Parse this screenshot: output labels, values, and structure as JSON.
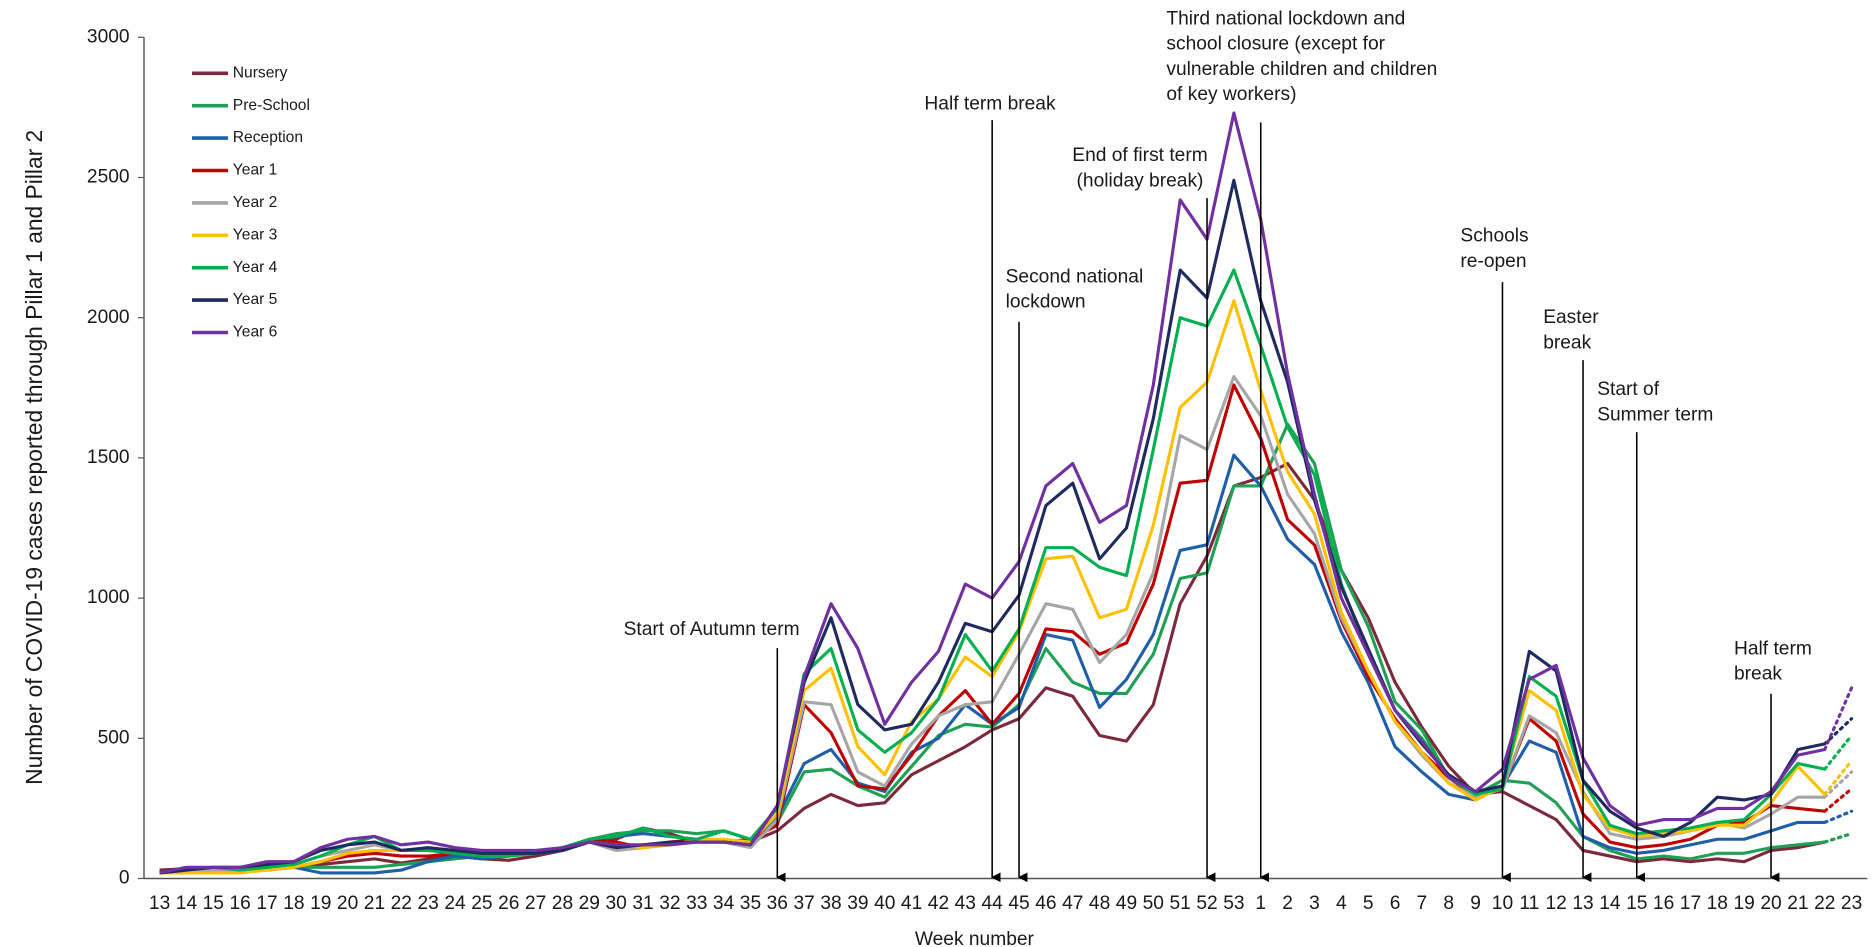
{
  "chart_data": {
    "type": "line",
    "xlabel": "Week number",
    "ylabel": "Number of COVID-19 cases reported through Pillar 1 and Pillar 2",
    "categories": [
      "13",
      "14",
      "15",
      "16",
      "17",
      "18",
      "19",
      "20",
      "21",
      "22",
      "23",
      "24",
      "25",
      "26",
      "27",
      "28",
      "29",
      "30",
      "31",
      "32",
      "33",
      "34",
      "35",
      "36",
      "37",
      "38",
      "39",
      "40",
      "41",
      "42",
      "43",
      "44",
      "45",
      "46",
      "47",
      "48",
      "49",
      "50",
      "51",
      "52",
      "53",
      "1",
      "2",
      "3",
      "4",
      "5",
      "6",
      "7",
      "8",
      "9",
      "10",
      "11",
      "12",
      "13",
      "14",
      "15",
      "16",
      "17",
      "18",
      "19",
      "20",
      "21",
      "22",
      "23"
    ],
    "ylim": [
      0,
      3000
    ],
    "yticks": [
      0,
      500,
      1000,
      1500,
      2000,
      2500,
      3000
    ],
    "legend": "top-left",
    "projected_last_point": true,
    "series": [
      {
        "name": "Nursery",
        "color": "#7b2a3b",
        "values": [
          30,
          35,
          35,
          30,
          35,
          40,
          50,
          60,
          70,
          55,
          70,
          80,
          70,
          65,
          80,
          100,
          130,
          140,
          180,
          160,
          130,
          130,
          130,
          170,
          250,
          300,
          260,
          270,
          370,
          420,
          470,
          530,
          570,
          680,
          650,
          510,
          490,
          620,
          980,
          1150,
          1400,
          1430,
          1480,
          1350,
          1100,
          930,
          700,
          540,
          400,
          300,
          310,
          260,
          210,
          100,
          80,
          60,
          70,
          60,
          70,
          60,
          100,
          110,
          130,
          160
        ]
      },
      {
        "name": "Pre-School",
        "color": "#1fa055",
        "values": [
          20,
          25,
          30,
          30,
          30,
          40,
          40,
          40,
          40,
          50,
          60,
          70,
          80,
          80,
          90,
          100,
          140,
          160,
          170,
          170,
          160,
          170,
          140,
          200,
          380,
          390,
          330,
          290,
          400,
          510,
          550,
          540,
          620,
          820,
          700,
          660,
          660,
          800,
          1070,
          1090,
          1400,
          1400,
          1620,
          1480,
          1100,
          900,
          630,
          530,
          360,
          300,
          350,
          340,
          270,
          150,
          100,
          70,
          80,
          70,
          90,
          90,
          110,
          120,
          130,
          160
        ]
      },
      {
        "name": "Reception",
        "color": "#1f5fa8",
        "values": [
          20,
          20,
          30,
          30,
          30,
          40,
          20,
          20,
          20,
          30,
          60,
          80,
          70,
          80,
          90,
          100,
          130,
          150,
          160,
          150,
          140,
          130,
          130,
          220,
          410,
          460,
          340,
          310,
          450,
          500,
          620,
          550,
          610,
          870,
          850,
          610,
          710,
          870,
          1170,
          1190,
          1510,
          1400,
          1210,
          1120,
          880,
          700,
          470,
          380,
          300,
          280,
          330,
          490,
          450,
          150,
          110,
          90,
          100,
          120,
          140,
          140,
          170,
          200,
          200,
          240
        ]
      },
      {
        "name": "Year 1",
        "color": "#c00000",
        "values": [
          20,
          30,
          30,
          30,
          40,
          40,
          60,
          80,
          90,
          80,
          80,
          90,
          80,
          80,
          90,
          100,
          140,
          130,
          110,
          130,
          140,
          130,
          140,
          190,
          620,
          520,
          330,
          320,
          440,
          580,
          670,
          550,
          660,
          890,
          880,
          800,
          840,
          1050,
          1410,
          1420,
          1760,
          1570,
          1280,
          1190,
          920,
          720,
          570,
          450,
          360,
          290,
          320,
          570,
          490,
          230,
          130,
          110,
          120,
          140,
          190,
          200,
          260,
          250,
          240,
          320
        ]
      },
      {
        "name": "Year 2",
        "color": "#a6a6a6",
        "values": [
          20,
          30,
          30,
          30,
          40,
          50,
          80,
          100,
          120,
          100,
          100,
          90,
          80,
          80,
          90,
          100,
          130,
          100,
          110,
          120,
          130,
          130,
          110,
          210,
          630,
          620,
          380,
          330,
          480,
          580,
          620,
          630,
          800,
          980,
          960,
          770,
          870,
          1090,
          1580,
          1530,
          1790,
          1650,
          1370,
          1230,
          930,
          740,
          560,
          440,
          340,
          290,
          320,
          580,
          520,
          310,
          160,
          140,
          150,
          170,
          200,
          180,
          230,
          290,
          290,
          380
        ]
      },
      {
        "name": "Year 3",
        "color": "#ffc000",
        "values": [
          20,
          20,
          20,
          20,
          30,
          40,
          60,
          90,
          100,
          100,
          100,
          100,
          80,
          80,
          90,
          110,
          130,
          120,
          110,
          120,
          140,
          140,
          130,
          230,
          670,
          750,
          470,
          370,
          560,
          640,
          790,
          720,
          880,
          1140,
          1150,
          930,
          960,
          1260,
          1680,
          1770,
          2060,
          1740,
          1450,
          1300,
          950,
          740,
          560,
          450,
          340,
          280,
          330,
          670,
          600,
          300,
          180,
          150,
          160,
          170,
          190,
          190,
          270,
          400,
          300,
          420
        ]
      },
      {
        "name": "Year 4",
        "color": "#00b050",
        "values": [
          20,
          30,
          40,
          30,
          40,
          50,
          80,
          120,
          150,
          100,
          100,
          90,
          80,
          80,
          90,
          110,
          140,
          150,
          180,
          150,
          140,
          170,
          140,
          250,
          730,
          820,
          530,
          450,
          520,
          640,
          870,
          740,
          890,
          1180,
          1180,
          1110,
          1080,
          1530,
          2000,
          1970,
          2170,
          1900,
          1610,
          1440,
          1050,
          800,
          600,
          500,
          360,
          300,
          320,
          720,
          650,
          350,
          190,
          160,
          170,
          180,
          200,
          210,
          300,
          410,
          390,
          510
        ]
      },
      {
        "name": "Year 5",
        "color": "#1f2a5e",
        "values": [
          20,
          30,
          40,
          40,
          50,
          60,
          100,
          120,
          130,
          100,
          110,
          100,
          90,
          90,
          90,
          100,
          130,
          110,
          120,
          130,
          130,
          130,
          120,
          260,
          700,
          930,
          620,
          530,
          550,
          700,
          910,
          880,
          1010,
          1330,
          1410,
          1140,
          1250,
          1640,
          2170,
          2070,
          2490,
          2060,
          1770,
          1350,
          1040,
          820,
          600,
          480,
          370,
          310,
          330,
          810,
          740,
          350,
          240,
          180,
          150,
          200,
          290,
          280,
          300,
          460,
          480,
          570
        ]
      },
      {
        "name": "Year 6",
        "color": "#7030a0",
        "values": [
          20,
          40,
          40,
          40,
          60,
          60,
          110,
          140,
          150,
          120,
          130,
          110,
          100,
          100,
          100,
          110,
          130,
          120,
          120,
          120,
          130,
          130,
          120,
          260,
          720,
          980,
          820,
          550,
          700,
          810,
          1050,
          1000,
          1130,
          1400,
          1480,
          1270,
          1330,
          1760,
          2420,
          2280,
          2730,
          2350,
          1800,
          1370,
          1000,
          800,
          600,
          490,
          360,
          310,
          390,
          710,
          760,
          430,
          260,
          190,
          210,
          210,
          250,
          250,
          310,
          440,
          460,
          680
        ]
      }
    ],
    "annotations": [
      {
        "at": "36",
        "lines": [
          "Start of Autumn term"
        ]
      },
      {
        "at": "44",
        "lines": [
          "Half term break"
        ]
      },
      {
        "at": "45",
        "lines": [
          "Second national",
          "lockdown"
        ]
      },
      {
        "at": "52",
        "lines": [
          "End of first term",
          "(holiday break)"
        ]
      },
      {
        "at": "1",
        "lines": [
          "Third national lockdown and",
          "school closure (except for",
          "vulnerable children and children",
          "of key workers)"
        ]
      },
      {
        "at": "10",
        "lines": [
          "Schools",
          "re-open"
        ]
      },
      {
        "at": "13",
        "lines": [
          "Easter",
          "break"
        ]
      },
      {
        "at": "15",
        "lines": [
          "Start of",
          "Summer term"
        ]
      },
      {
        "at": "20",
        "lines": [
          "Half term",
          "break"
        ]
      }
    ]
  }
}
